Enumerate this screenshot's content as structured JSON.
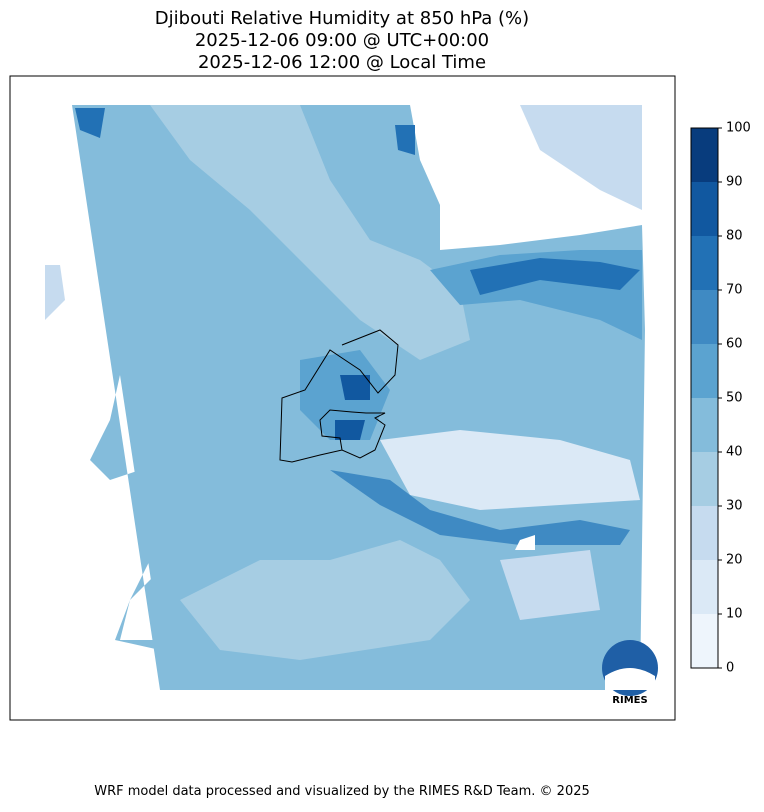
{
  "title": [
    "Djibouti Relative Humidity at 850 hPa (%)",
    "2025-12-06 09:00 @ UTC+00:00",
    "2025-12-06 12:00 @ Local Time"
  ],
  "colorbar": {
    "ticks": [
      0,
      10,
      20,
      30,
      40,
      50,
      60,
      70,
      80,
      90,
      100
    ],
    "colors": [
      "#eef5fc",
      "#dbe9f6",
      "#c6dbef",
      "#a6cde3",
      "#84bcdb",
      "#5ba3d0",
      "#3f8ac3",
      "#2271b5",
      "#1158a0",
      "#083c7d"
    ]
  },
  "logo": "RIMES",
  "footer": "WRF model data processed and visualized by the RIMES R&D Team. © 2025"
}
